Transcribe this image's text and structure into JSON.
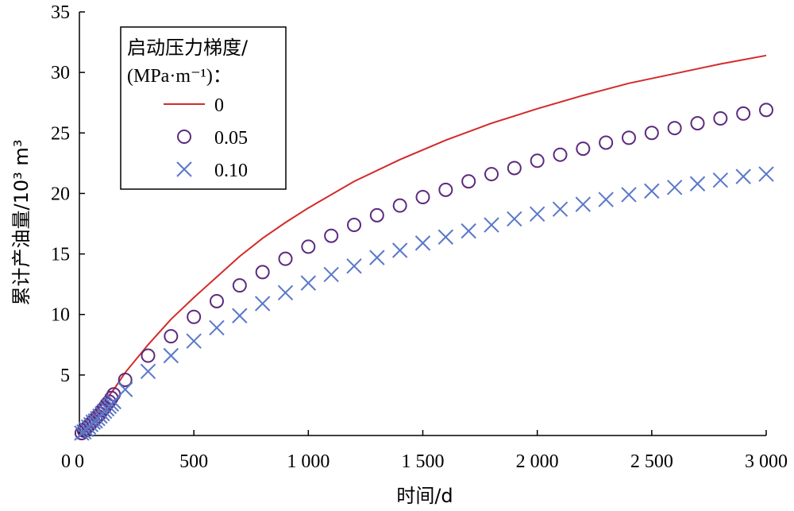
{
  "chart_data": {
    "type": "scatter",
    "xlabel": "时间/d",
    "ylabel": "累计产油量/10³ m³",
    "xlim": [
      0,
      3000
    ],
    "ylim": [
      0,
      35
    ],
    "x_ticks": [
      0,
      500,
      1000,
      1500,
      2000,
      2500,
      3000
    ],
    "x_tick_labels": [
      "0",
      "500",
      "1 000",
      "1 500",
      "2 000",
      "2 500",
      "3 000"
    ],
    "y_ticks": [
      5,
      10,
      15,
      20,
      25,
      30,
      35
    ],
    "y_tick_labels": [
      "5",
      "10",
      "15",
      "20",
      "25",
      "30",
      "35"
    ],
    "grid": false,
    "legend": {
      "placement": "top-left",
      "title_line1": "启动压力梯度/",
      "title_line2": "(MPa·m⁻¹)：",
      "entries": [
        "0",
        "0.05",
        "0.10"
      ]
    },
    "series": [
      {
        "name": "0",
        "style": "line",
        "color": "#d42a2a",
        "x": [
          0,
          20,
          50,
          100,
          150,
          200,
          300,
          400,
          500,
          600,
          700,
          800,
          900,
          1000,
          1200,
          1400,
          1600,
          1800,
          2000,
          2200,
          2400,
          2600,
          2800,
          3000
        ],
        "y": [
          0,
          0.5,
          1.3,
          2.6,
          3.8,
          5.2,
          7.5,
          9.6,
          11.4,
          13.1,
          14.8,
          16.3,
          17.6,
          18.8,
          21.0,
          22.8,
          24.4,
          25.8,
          27.0,
          28.1,
          29.1,
          29.9,
          30.7,
          31.4
        ]
      },
      {
        "name": "0.05",
        "style": "circle",
        "color": "#5c2a7e",
        "x": [
          10,
          20,
          30,
          40,
          50,
          60,
          70,
          80,
          90,
          100,
          110,
          120,
          130,
          140,
          150,
          200,
          300,
          400,
          500,
          600,
          700,
          800,
          900,
          1000,
          1100,
          1200,
          1300,
          1400,
          1500,
          1600,
          1700,
          1800,
          1900,
          2000,
          2100,
          2200,
          2300,
          2400,
          2500,
          2600,
          2700,
          2800,
          2900,
          3000
        ],
        "y": [
          0.2,
          0.4,
          0.6,
          0.8,
          1.0,
          1.2,
          1.4,
          1.6,
          1.8,
          2.1,
          2.3,
          2.6,
          2.8,
          3.1,
          3.4,
          4.6,
          6.6,
          8.2,
          9.8,
          11.1,
          12.4,
          13.5,
          14.6,
          15.6,
          16.5,
          17.4,
          18.2,
          19.0,
          19.7,
          20.3,
          21.0,
          21.6,
          22.1,
          22.7,
          23.2,
          23.7,
          24.2,
          24.6,
          25.0,
          25.4,
          25.8,
          26.2,
          26.6,
          26.9
        ]
      },
      {
        "name": "0.10",
        "style": "cross",
        "color": "#5a78c8",
        "x": [
          10,
          20,
          30,
          40,
          50,
          60,
          70,
          80,
          90,
          100,
          110,
          120,
          130,
          140,
          150,
          200,
          300,
          400,
          500,
          600,
          700,
          800,
          900,
          1000,
          1100,
          1200,
          1300,
          1400,
          1500,
          1600,
          1700,
          1800,
          1900,
          2000,
          2100,
          2200,
          2300,
          2400,
          2500,
          2600,
          2700,
          2800,
          2900,
          3000
        ],
        "y": [
          0.2,
          0.3,
          0.5,
          0.7,
          0.9,
          1.1,
          1.2,
          1.4,
          1.6,
          1.8,
          2.0,
          2.2,
          2.4,
          2.6,
          2.8,
          3.8,
          5.3,
          6.6,
          7.8,
          8.9,
          9.9,
          10.9,
          11.8,
          12.6,
          13.3,
          14.0,
          14.7,
          15.3,
          15.9,
          16.4,
          16.9,
          17.4,
          17.9,
          18.3,
          18.7,
          19.1,
          19.5,
          19.9,
          20.2,
          20.5,
          20.8,
          21.1,
          21.4,
          21.6
        ]
      }
    ]
  }
}
